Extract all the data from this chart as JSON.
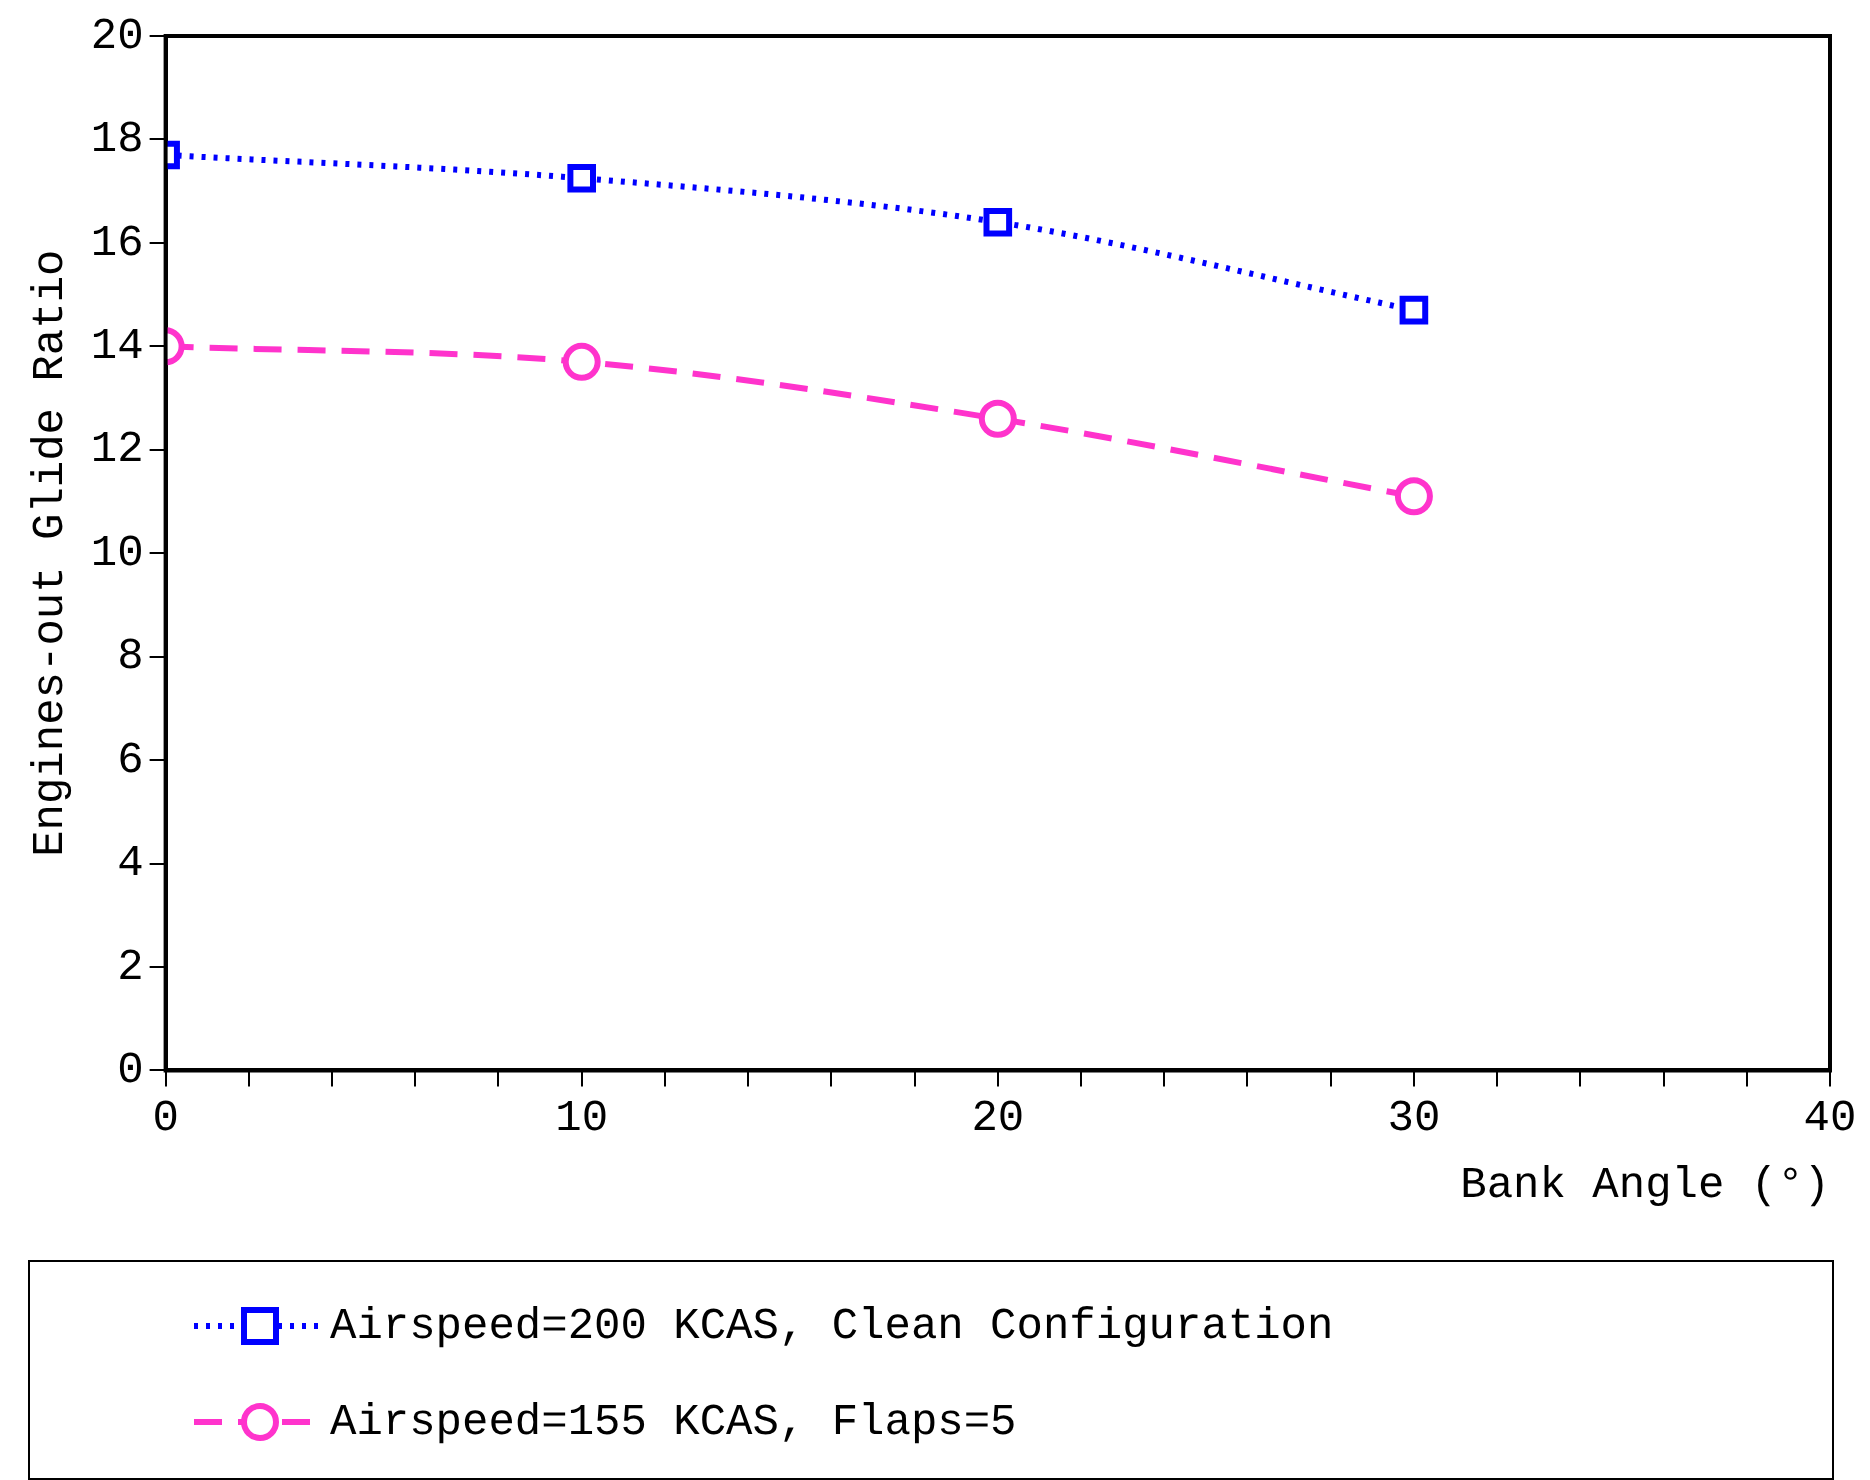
{
  "chart_data": {
    "type": "line",
    "xlabel": "Bank Angle (°)",
    "ylabel": "Engines-out Glide Ratio",
    "x": [
      0,
      10,
      20,
      30
    ],
    "series": [
      {
        "name": "Airspeed=200 KCAS, Clean Configuration",
        "color": "#0000ff",
        "values": [
          17.7,
          17.25,
          16.4,
          14.7
        ],
        "marker": "square",
        "line_style": "dotted"
      },
      {
        "name": "Airspeed=155 KCAS, Flaps=5",
        "color": "#ff33cc",
        "values": [
          14.0,
          13.7,
          12.6,
          11.1
        ],
        "marker": "circle",
        "line_style": "dashed"
      }
    ],
    "xlim": [
      0,
      40
    ],
    "xticks": [
      0,
      {
        "value": 2,
        "label": null
      },
      {
        "value": 4,
        "label": null
      },
      {
        "value": 6,
        "label": null
      },
      {
        "value": 8,
        "label": null
      },
      10,
      {
        "value": 12,
        "label": null
      },
      {
        "value": 14,
        "label": null
      },
      {
        "value": 16,
        "label": null
      },
      {
        "value": 18,
        "label": null
      },
      20,
      {
        "value": 22,
        "label": null
      },
      {
        "value": 24,
        "label": null
      },
      {
        "value": 26,
        "label": null
      },
      {
        "value": 28,
        "label": null
      },
      30,
      {
        "value": 32,
        "label": null
      },
      {
        "value": 34,
        "label": null
      },
      {
        "value": 36,
        "label": null
      },
      {
        "value": 38,
        "label": null
      },
      40
    ],
    "ylim": [
      0,
      20
    ],
    "yticks": [
      0,
      2,
      4,
      6,
      8,
      10,
      12,
      14,
      16,
      18,
      20
    ],
    "grid": false,
    "legend": "bottom"
  }
}
